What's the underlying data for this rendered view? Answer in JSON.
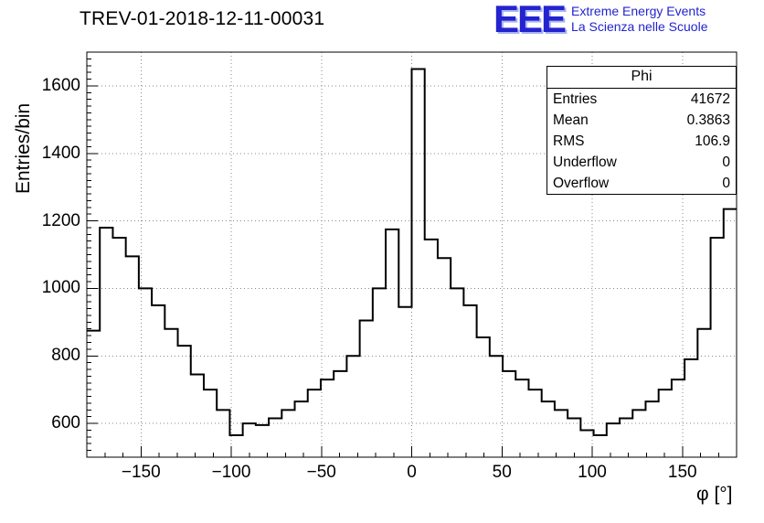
{
  "header": {
    "title": "TREV-01-2018-12-11-00031"
  },
  "logo": {
    "acronym": "EEE",
    "line1": "Extreme Energy Events",
    "line2": "La Scienza nelle Scuole",
    "color": "#2323cf"
  },
  "stats": {
    "title": "Phi",
    "rows": [
      {
        "label": "Entries",
        "value": "41672"
      },
      {
        "label": "Mean",
        "value": "0.3863"
      },
      {
        "label": "RMS",
        "value": "106.9"
      },
      {
        "label": "Underflow",
        "value": "0"
      },
      {
        "label": "Overflow",
        "value": "0"
      }
    ]
  },
  "chart_data": {
    "type": "bar",
    "subtype": "step-histogram",
    "title": "TREV-01-2018-12-11-00031",
    "xlabel": "φ [°]",
    "ylabel": "Entries/bin",
    "xlim": [
      -180,
      180
    ],
    "ylim": [
      500,
      1700
    ],
    "grid": true,
    "legend": "none",
    "bin_start": -180,
    "bin_width": 7.2,
    "values": [
      875,
      1180,
      1150,
      1095,
      1000,
      950,
      880,
      830,
      745,
      700,
      640,
      565,
      600,
      595,
      615,
      640,
      665,
      700,
      730,
      755,
      800,
      905,
      1000,
      1175,
      945,
      1650,
      1145,
      1090,
      1000,
      950,
      855,
      800,
      755,
      730,
      700,
      665,
      640,
      615,
      580,
      565,
      600,
      615,
      640,
      665,
      700,
      730,
      790,
      880,
      1150,
      1235
    ],
    "xtick_values": [
      -150,
      -100,
      -50,
      0,
      50,
      100,
      150
    ],
    "xtick_labels": [
      "−150",
      "−100",
      "−50",
      "0",
      "50",
      "100",
      "150"
    ],
    "ytick_values": [
      600,
      800,
      1000,
      1200,
      1400,
      1600
    ],
    "ytick_labels": [
      "600",
      "800",
      "1000",
      "1200",
      "1400",
      "1600"
    ],
    "x_minor_step": 10,
    "y_minor_step": 20,
    "line_color": "#000000",
    "grid_color": "#8a8a8a"
  }
}
